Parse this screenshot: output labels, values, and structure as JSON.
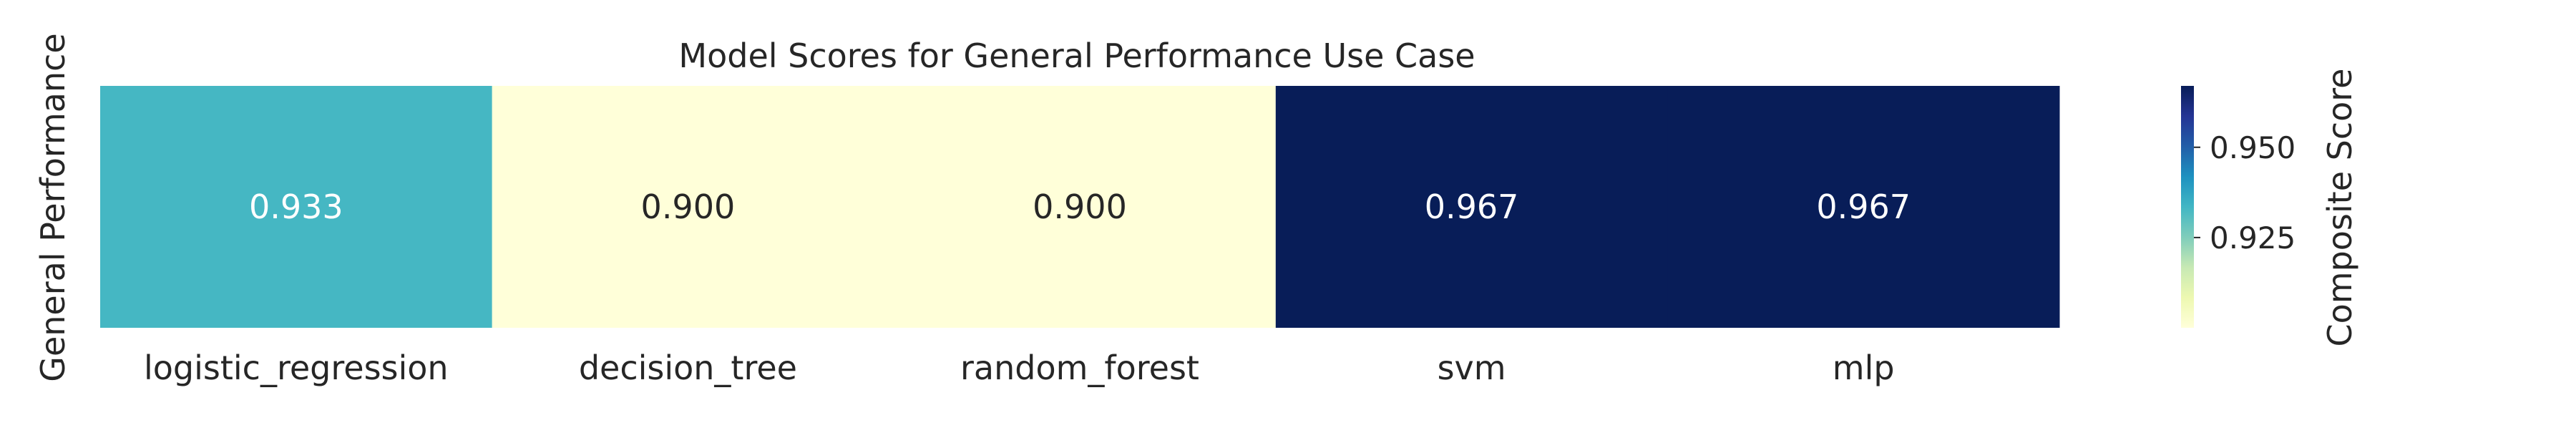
{
  "chart_data": {
    "type": "heatmap",
    "title": "Model Scores for General Performance Use Case",
    "ylabel": "General Performance",
    "x_categories": [
      "logistic_regression",
      "decision_tree",
      "random_forest",
      "svm",
      "mlp"
    ],
    "values": [
      0.933,
      0.9,
      0.9,
      0.967,
      0.967
    ],
    "value_labels": [
      "0.933",
      "0.900",
      "0.900",
      "0.967",
      "0.967"
    ],
    "colormap": "YlGnBu",
    "colors": {
      "low": "#ffffd9",
      "mid": "#44b7c4",
      "high": "#081d58",
      "label_dark": "#262626",
      "label_light": "#ffffff"
    },
    "colorbar": {
      "label": "Composite Score",
      "range": [
        0.9,
        0.967
      ],
      "ticks": [
        0.925,
        0.95
      ],
      "tick_labels": [
        "0.925",
        "0.950"
      ]
    },
    "grid": false
  }
}
